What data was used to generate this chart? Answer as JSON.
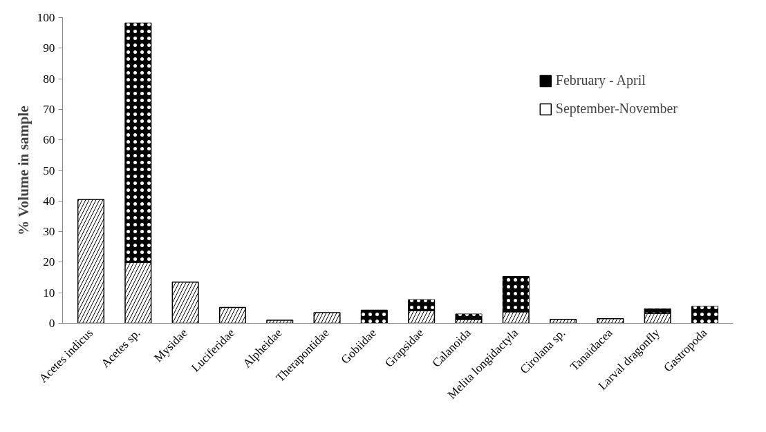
{
  "chart_data": {
    "type": "bar",
    "stacked": true,
    "ylabel": "% Volume in sample",
    "categories": [
      "Acetes indicus",
      "Acetes sp.",
      "Mysidae",
      "Luciferidae",
      "Alpheidae",
      "Therapontidae",
      "Gobiidae",
      "Grapsidae",
      "Calanoida",
      "Melita longidactyla",
      "Cirolana sp.",
      "Tanaidacea",
      "Larval dragonfly",
      "Gastropoda"
    ],
    "series": [
      {
        "name": "September-November",
        "color": "#ffffff",
        "values": [
          40.5,
          20,
          13.5,
          5.2,
          1,
          3.5,
          null,
          4.2,
          1.3,
          3.8,
          1.3,
          1.5,
          3.3,
          null
        ]
      },
      {
        "name": "February - April",
        "color": "#000000",
        "values": [
          null,
          78.2,
          null,
          null,
          null,
          null,
          4.3,
          3.5,
          1.7,
          11.5,
          null,
          null,
          1.4,
          5.5
        ]
      }
    ],
    "ylim": [
      0,
      100
    ],
    "yticks": [
      0,
      10,
      20,
      30,
      40,
      50,
      60,
      70,
      80,
      90,
      100
    ],
    "grid": false,
    "legend": "top right"
  }
}
